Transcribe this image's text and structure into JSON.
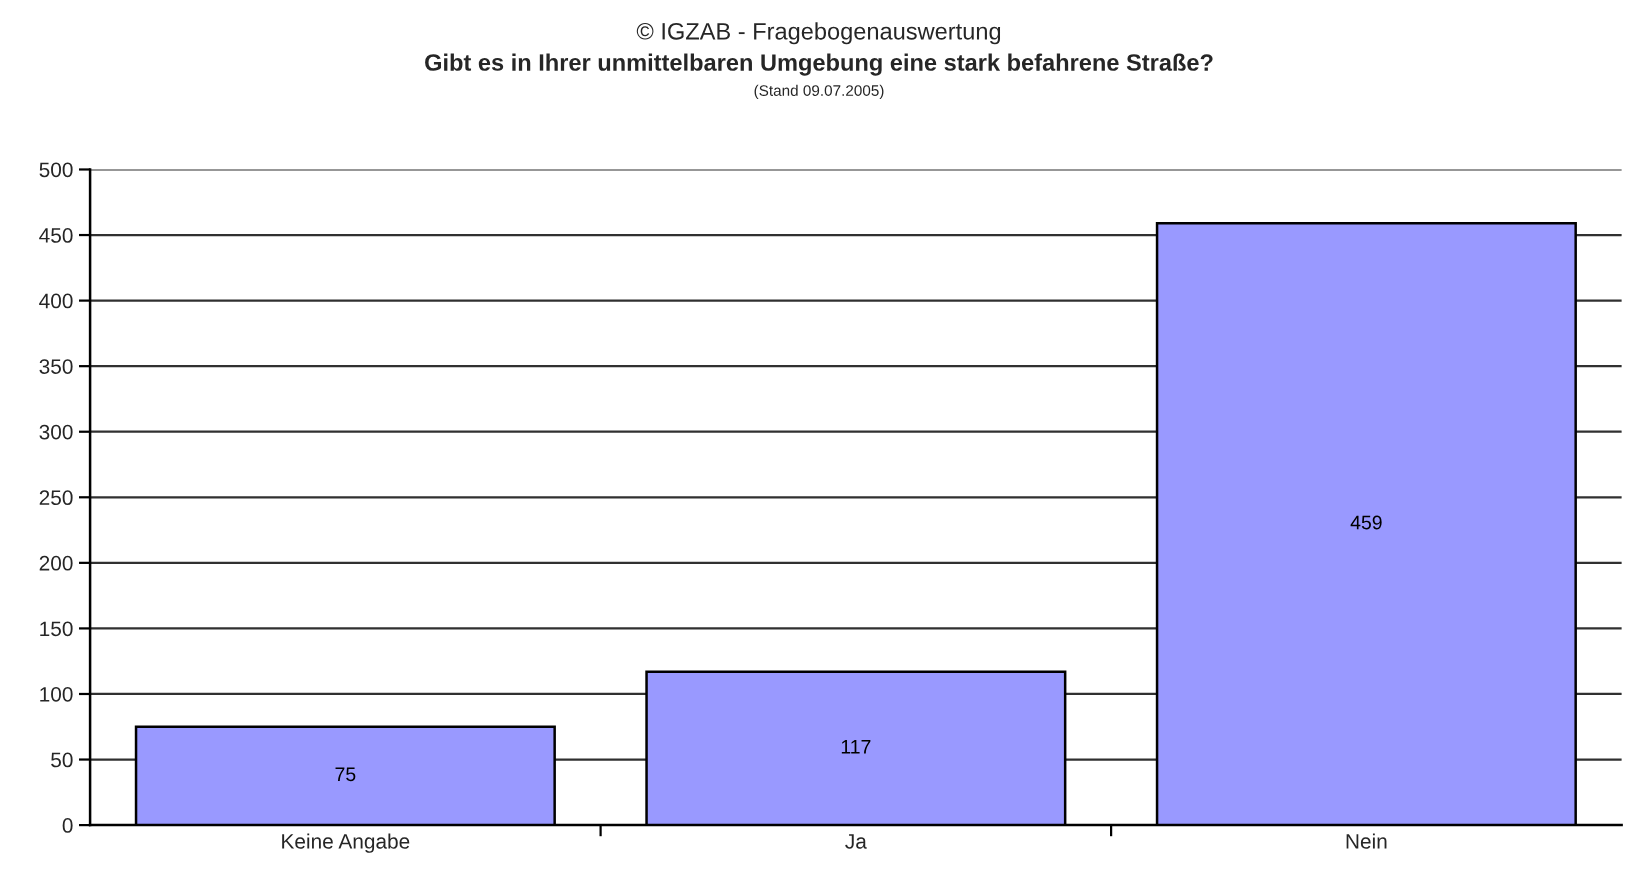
{
  "chart_data": {
    "type": "bar",
    "annotations": [
      "© IGZAB - Fragebogenauswertung"
    ],
    "title": "Gibt es in Ihrer unmittelbaren Umgebung eine stark befahrene Straße?",
    "subtitle": "(Stand 09.07.2005)",
    "categories": [
      "Keine Angabe",
      "Ja",
      "Nein"
    ],
    "values": [
      75,
      117,
      459
    ],
    "color": "#9999ff",
    "ylim": [
      0,
      500
    ],
    "yticks": [
      0,
      50,
      100,
      150,
      200,
      250,
      300,
      350,
      400,
      450,
      500
    ],
    "grid": "y",
    "data_labels": true
  }
}
